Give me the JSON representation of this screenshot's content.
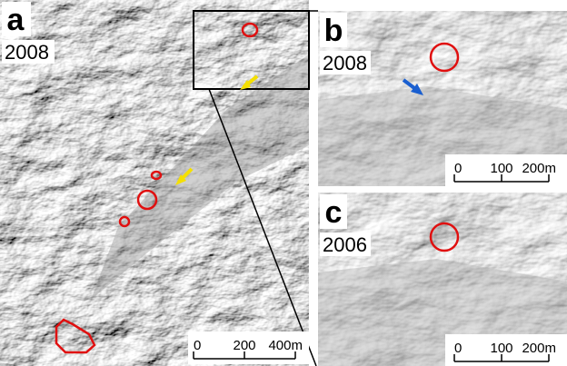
{
  "panels": [
    {
      "label": "a",
      "year": "2008",
      "scale": [
        "0",
        "200",
        "400m"
      ]
    },
    {
      "label": "b",
      "year": "2008",
      "scale": [
        "0",
        "100",
        "200m"
      ]
    },
    {
      "label": "c",
      "year": "2006",
      "scale": [
        "0",
        "100",
        "200m"
      ]
    }
  ]
}
